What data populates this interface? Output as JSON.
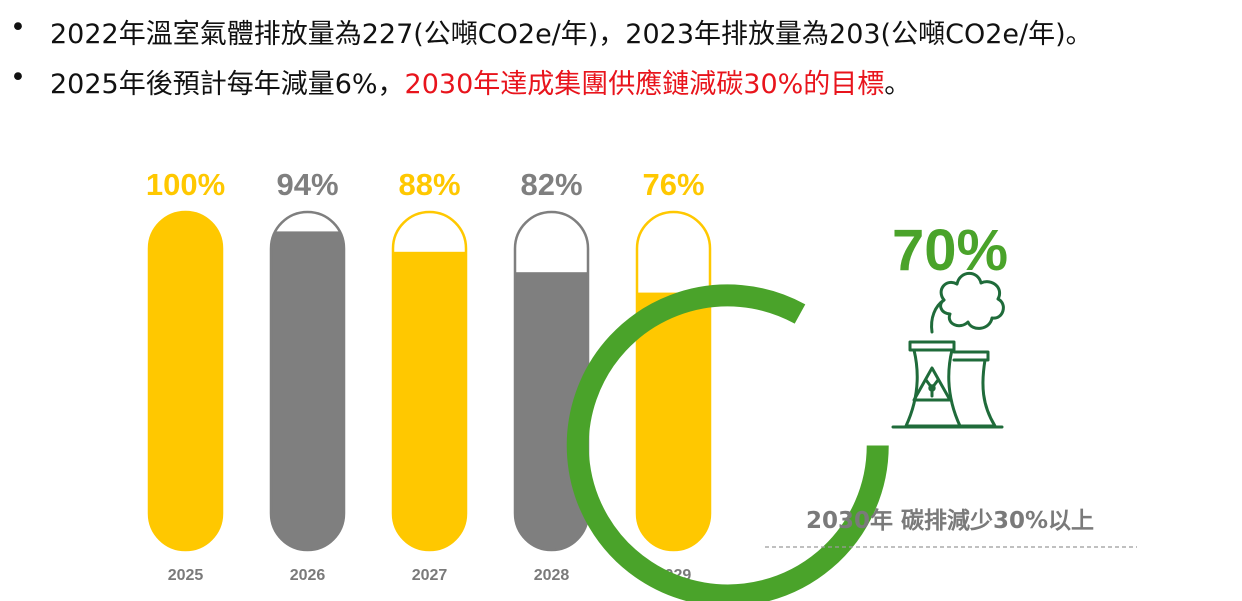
{
  "bullets": [
    {
      "dot": "•",
      "text": "2022年溫室氣體排放量為227(公噸CO2e/年)，2023年排放量為203(公噸CO2e/年)。",
      "highlight": "",
      "suffix": ""
    },
    {
      "dot": "•",
      "text": "2025年後預計每年減量6%，",
      "highlight": "2030年達成集團供應鏈減碳30%的目標",
      "suffix": "。"
    }
  ],
  "colors": {
    "yellow": "#ffc800",
    "gray": "#7f7f7f",
    "green": "#4aa32a",
    "red": "#e8141c",
    "icon": "#1f6b3a"
  },
  "chart_data": {
    "type": "bar",
    "categories": [
      "2025",
      "2026",
      "2027",
      "2028",
      "2029"
    ],
    "values": [
      100,
      94,
      88,
      82,
      76
    ],
    "value_labels": [
      "100%",
      "94%",
      "88%",
      "82%",
      "76%"
    ],
    "ylim": [
      0,
      100
    ],
    "bar_colors": [
      "yellow",
      "gray",
      "yellow",
      "gray",
      "yellow"
    ]
  },
  "target": {
    "value": 70,
    "value_label": "70%",
    "caption": "2030年 碳排減少30%以上",
    "icon": "factory-emissions-icon",
    "ring_fraction": 0.83
  }
}
